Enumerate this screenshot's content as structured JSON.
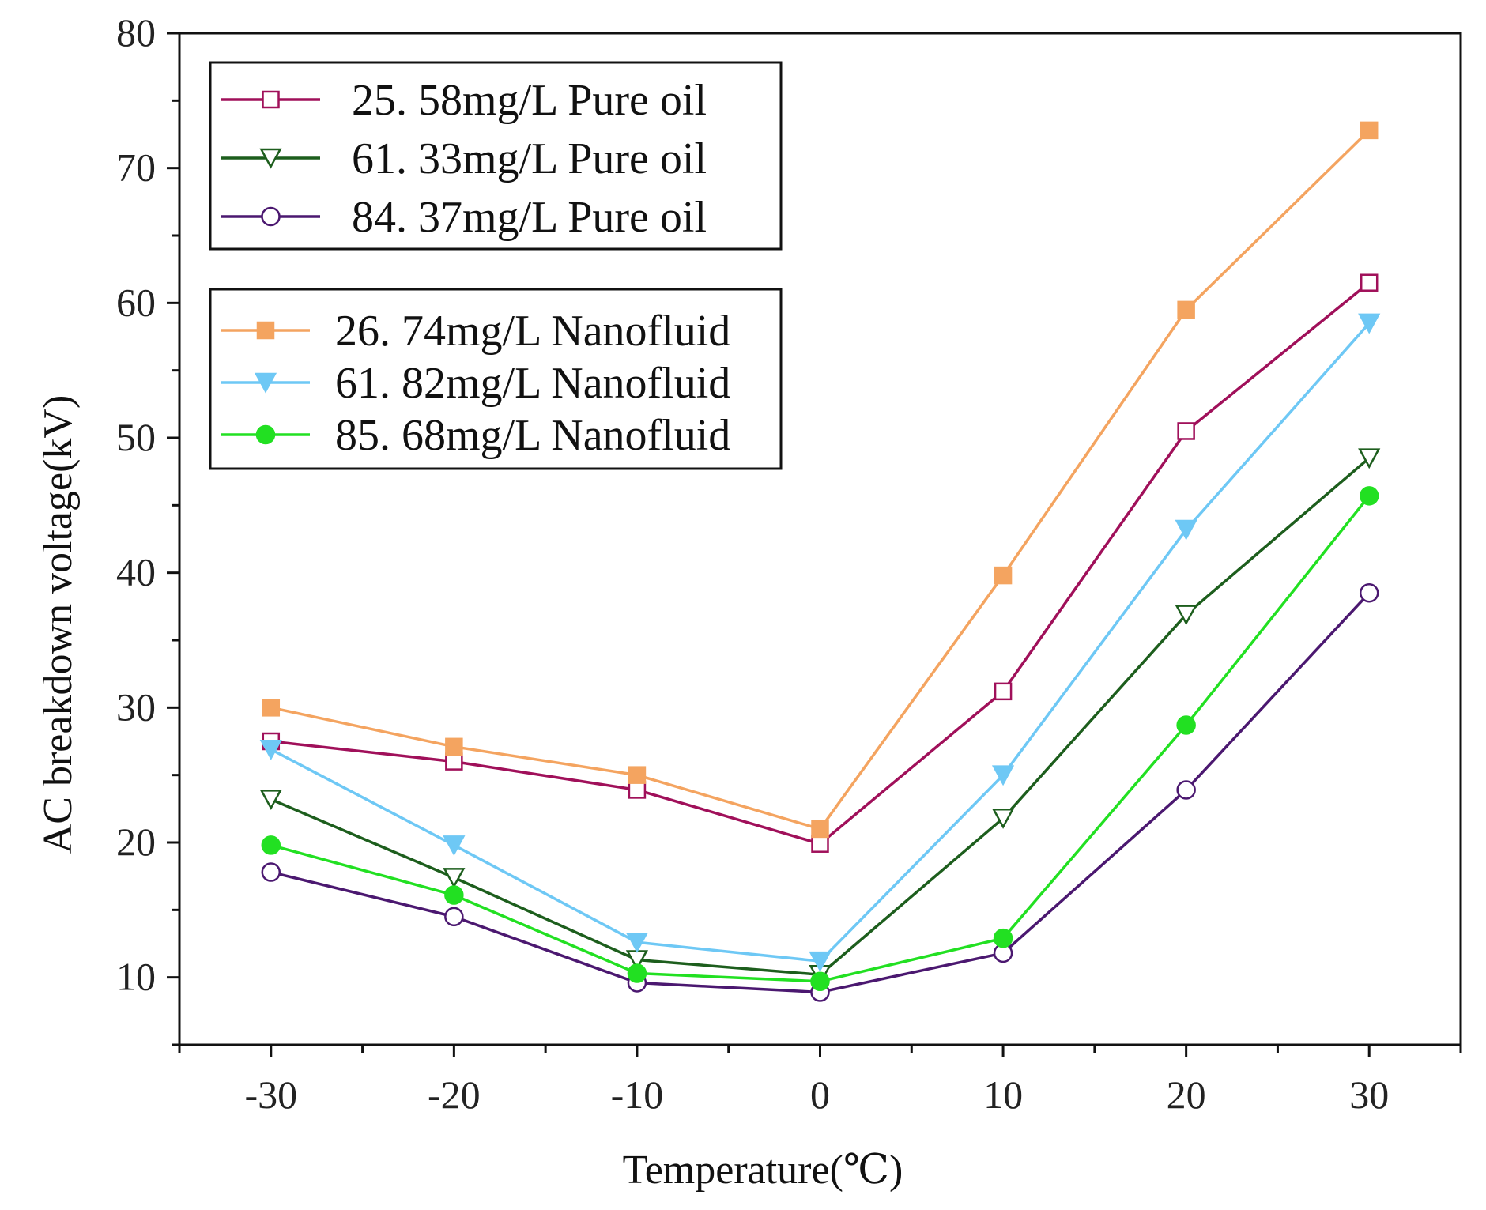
{
  "chart_data": {
    "type": "line",
    "title": "",
    "xlabel": "Temperature(℃)",
    "ylabel": "AC breakdown voltage(kV)",
    "x": [
      -30,
      -20,
      -10,
      0,
      10,
      20,
      30
    ],
    "xlim": [
      -35,
      35
    ],
    "ylim": [
      5,
      80
    ],
    "xticks": [
      "-30",
      "-20",
      "-10",
      "0",
      "10",
      "20",
      "30"
    ],
    "yticks": [
      "10",
      "20",
      "30",
      "40",
      "50",
      "60",
      "70",
      "80"
    ],
    "grid": false,
    "series": [
      {
        "name": "25. 58mg/L Pure oil",
        "color": "#a0105a",
        "marker": "square",
        "filled": false,
        "values": [
          27.5,
          26.0,
          23.9,
          19.9,
          31.2,
          50.5,
          61.5
        ]
      },
      {
        "name": "61. 33mg/L Pure oil",
        "color": "#1d5e1d",
        "marker": "triangle-down",
        "filled": false,
        "values": [
          23.2,
          17.4,
          11.3,
          10.2,
          21.8,
          36.9,
          48.5
        ]
      },
      {
        "name": "84. 37mg/L Pure oil",
        "color": "#4b1870",
        "marker": "circle",
        "filled": false,
        "values": [
          17.8,
          14.5,
          9.6,
          8.9,
          11.8,
          23.9,
          38.5
        ]
      },
      {
        "name": "26. 74mg/L Nanofluid",
        "color": "#f4a460",
        "marker": "square",
        "filled": true,
        "values": [
          30.0,
          27.1,
          25.0,
          21.0,
          39.8,
          59.5,
          72.8
        ]
      },
      {
        "name": "61. 82mg/L Nanofluid",
        "color": "#6ec8f5",
        "marker": "triangle-down",
        "filled": true,
        "values": [
          26.9,
          19.8,
          12.6,
          11.2,
          25.0,
          43.2,
          58.5
        ]
      },
      {
        "name": "85. 68mg/L Nanofluid",
        "color": "#22e022",
        "marker": "circle",
        "filled": true,
        "values": [
          19.8,
          16.1,
          10.3,
          9.7,
          12.9,
          28.7,
          45.7
        ]
      }
    ],
    "legends": [
      {
        "placement": "top-left",
        "series": [
          0,
          1,
          2
        ]
      },
      {
        "placement": "upper-left",
        "series": [
          3,
          4,
          5
        ]
      }
    ]
  }
}
